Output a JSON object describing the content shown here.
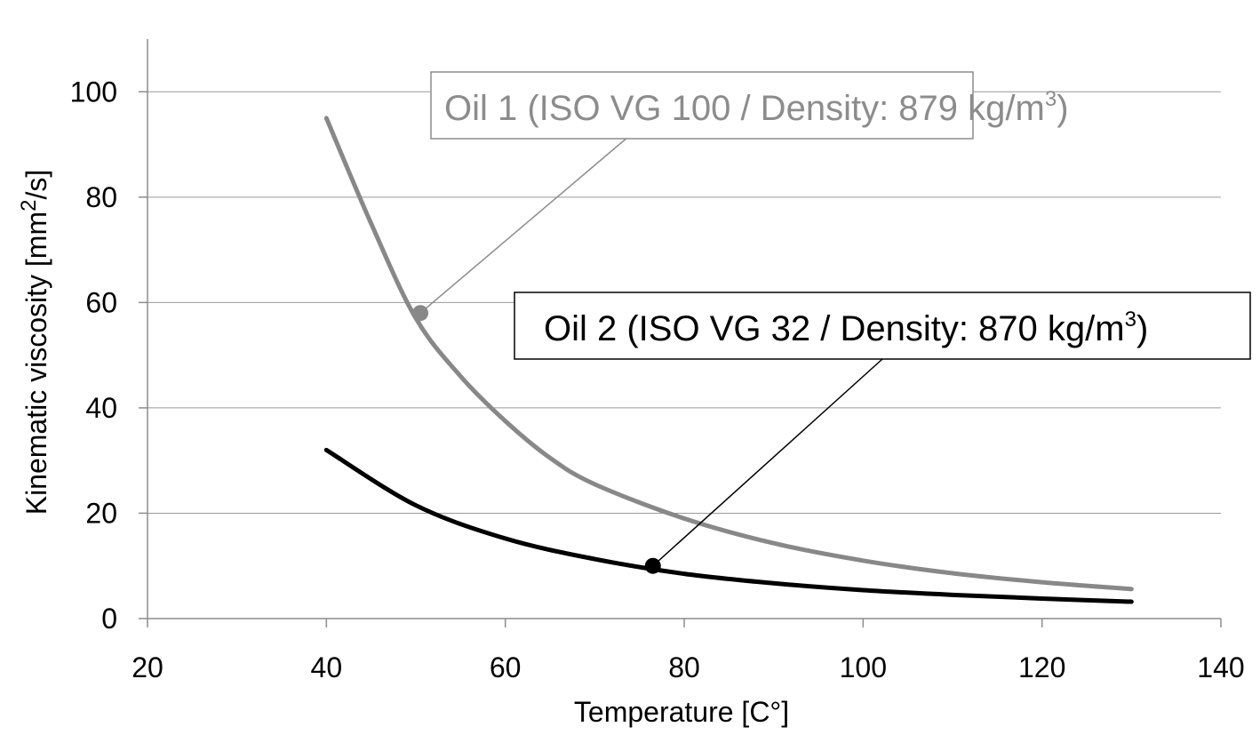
{
  "chart_data": {
    "type": "line",
    "title": "",
    "xlabel": "Temperature [C°]",
    "ylabel": {
      "pre": "Kinematic  viscosity [mm",
      "sup": "2",
      "post": "/s]"
    },
    "xlim": [
      20,
      140
    ],
    "ylim": [
      0,
      110
    ],
    "xticks": [
      20,
      40,
      60,
      80,
      100,
      120,
      140
    ],
    "yticks": [
      0,
      20,
      40,
      60,
      80,
      100
    ],
    "grid": "horizontal",
    "series": [
      {
        "color": "#888888",
        "x": [
          40,
          45,
          50,
          55,
          60,
          65,
          70,
          80,
          90,
          100,
          110,
          120,
          130
        ],
        "y": [
          95,
          75,
          57,
          46,
          37.5,
          30.5,
          25.5,
          19,
          14.3,
          11,
          8.6,
          6.9,
          5.6
        ]
      },
      {
        "color": "#000000",
        "x": [
          40,
          50,
          60,
          70,
          80,
          90,
          100,
          110,
          120,
          130
        ],
        "y": [
          32,
          21.5,
          15.2,
          11.3,
          8.5,
          6.7,
          5.4,
          4.5,
          3.8,
          3.2
        ]
      }
    ],
    "annotations": [
      {
        "series": 0,
        "pre": "Oil 1 (ISO VG 100 / Density: 879 kg/m",
        "sup": "3",
        "post": ")",
        "point": [
          50.5,
          58
        ],
        "text_color": "#8c8c8c",
        "box_border": "#8c8c8c"
      },
      {
        "series": 1,
        "pre": "Oil 2 (ISO VG 32 / Density: 870 kg/m",
        "sup": "3",
        "post": ")",
        "point": [
          76.5,
          10
        ],
        "text_color": "#000000",
        "box_border": "#000000"
      }
    ]
  }
}
